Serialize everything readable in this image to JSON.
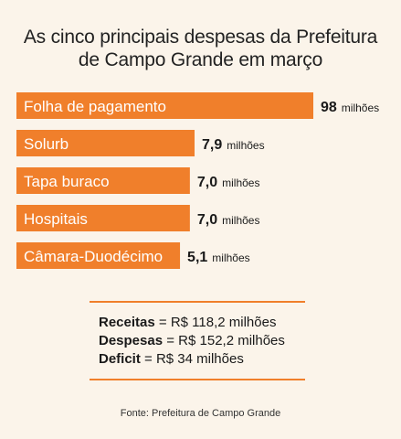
{
  "title": {
    "line1": "As cinco principais despesas da Prefeitura",
    "line2": "de Campo Grande em março"
  },
  "chart_data": {
    "type": "bar",
    "orientation": "horizontal",
    "unit": "milhões",
    "bar_color": "#f07f2b",
    "categories": [
      "Folha de pagamento",
      "Solurb",
      "Tapa buraco",
      "Hospitais",
      "Câmara-Duodécimo"
    ],
    "values": [
      98,
      7.9,
      7.0,
      7.0,
      5.1
    ],
    "value_labels": [
      "98",
      "7,9",
      "7,0",
      "7,0",
      "5,1"
    ]
  },
  "summary": {
    "receitas_label": "Receitas",
    "receitas_value": "= R$ 118,2 milhões",
    "despesas_label": "Despesas",
    "despesas_value": "= R$ 152,2 milhões",
    "deficit_label": "Deficit",
    "deficit_value": "= R$ 34 milhões"
  },
  "source": "Fonte: Prefeitura de Campo Grande"
}
